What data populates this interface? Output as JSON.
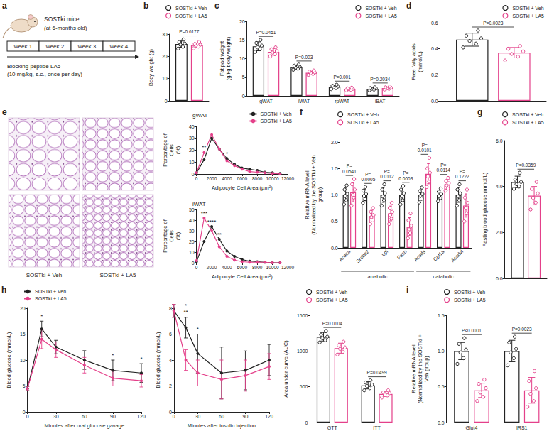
{
  "diagram": {
    "panel_label": "a",
    "subject": "SOSTki mice",
    "age": "(at 6-months old)",
    "weeks": [
      "week 1",
      "week 2",
      "week 3",
      "week 4"
    ],
    "treatment": "Blocking peptide LA5 (10 mg/kg, s.c., once per day)"
  },
  "images": {
    "panel_label": "e",
    "columns": [
      "SOSTki + Veh",
      "SOSTki + LA5"
    ]
  },
  "chart_data": [
    {
      "type": "bar",
      "panel_label": "b",
      "ylabel": "Body weight (g)",
      "categories": [
        null
      ],
      "ylim": [
        0,
        30
      ],
      "yticks": [
        0,
        10,
        20,
        30
      ],
      "grid": false,
      "legend": "top-left",
      "series": [
        {
          "name": "SOSTki + Veh",
          "color": "#222222",
          "values": [
            25.5
          ],
          "errors": [
            1.4
          ],
          "points": [
            [
              23.5,
              24.3,
              25.2,
              25.8,
              26.4,
              27.6
            ]
          ]
        },
        {
          "name": "SOSTki + LA5",
          "color": "#e4408a",
          "values": [
            25.0
          ],
          "errors": [
            1.0
          ],
          "points": [
            [
              23.6,
              24.4,
              24.9,
              25.2,
              25.6,
              26.5
            ]
          ]
        }
      ],
      "annotations": [
        "P=0.6177"
      ]
    },
    {
      "type": "bar",
      "panel_label": "c",
      "ylabel": "Fat pad weight (g/kg body weight)",
      "categories": [
        "gWAT",
        "iWAT",
        "rpWAT",
        "iBAT"
      ],
      "ylim": [
        0,
        20
      ],
      "yticks": [
        0,
        5,
        10,
        15,
        20
      ],
      "grid": false,
      "legend": "top-right",
      "series": [
        {
          "name": "SOSTki + Veh",
          "color": "#222222",
          "values": [
            13.3,
            7.7,
            2.4,
            1.9
          ],
          "errors": [
            1.2,
            0.5,
            0.4,
            0.3
          ],
          "points": [
            [
              11.8,
              12.5,
              13.0,
              13.5,
              14.2,
              15.0
            ],
            [
              7.0,
              7.3,
              7.6,
              7.8,
              8.1,
              8.4
            ],
            [
              1.8,
              2.1,
              2.3,
              2.5,
              2.7,
              3.0
            ],
            [
              1.5,
              1.7,
              1.9,
              2.0,
              2.1,
              2.3
            ]
          ]
        },
        {
          "name": "SOSTki + LA5",
          "color": "#e4408a",
          "values": [
            11.8,
            6.2,
            1.8,
            2.1
          ],
          "errors": [
            0.9,
            0.4,
            0.25,
            0.3
          ],
          "points": [
            [
              10.6,
              11.2,
              11.6,
              12.0,
              12.5,
              13.0
            ],
            [
              5.6,
              5.9,
              6.1,
              6.3,
              6.5,
              6.8
            ],
            [
              1.5,
              1.6,
              1.8,
              1.9,
              2.0,
              2.2
            ],
            [
              1.7,
              1.9,
              2.0,
              2.2,
              2.3,
              2.5
            ]
          ]
        }
      ],
      "annotations": [
        "P=0.0451",
        "P=0.003",
        "P=0.001",
        "P=0.2034"
      ]
    },
    {
      "type": "bar",
      "panel_label": "d",
      "ylabel": "Free fatty acids (mmol/L)",
      "categories": [
        null
      ],
      "ylim": [
        0,
        0.6
      ],
      "yticks": [
        {
          "value": 0,
          "label": "0.0"
        },
        0.2,
        0.4,
        0.6
      ],
      "grid": false,
      "legend": "top-right",
      "series": [
        {
          "name": "SOSTki + Veh",
          "color": "#222222",
          "values": [
            0.47
          ],
          "errors": [
            0.05
          ],
          "points": [
            [
              0.41,
              0.44,
              0.46,
              0.48,
              0.5,
              0.54
            ]
          ]
        },
        {
          "name": "SOSTki + LA5",
          "color": "#e4408a",
          "values": [
            0.37
          ],
          "errors": [
            0.04
          ],
          "points": [
            [
              0.31,
              0.34,
              0.36,
              0.38,
              0.4,
              0.42
            ]
          ]
        }
      ],
      "annotations": [
        "P=0.0023"
      ]
    },
    {
      "type": "line",
      "title": "gWAT",
      "xlabel": "Adipocyte Cell Area (µm²)",
      "ylabel": "Percentage of Cells (%)",
      "x": [
        0,
        1000,
        2000,
        3000,
        4000,
        5000,
        6000,
        7000,
        8000,
        9000,
        10000,
        11000
      ],
      "xlim": [
        0,
        12000
      ],
      "xticks": [
        0,
        2000,
        4000,
        6000,
        8000,
        10000,
        12000
      ],
      "ylim": [
        0,
        40
      ],
      "yticks": [
        0,
        10,
        20,
        30,
        40
      ],
      "grid": false,
      "legend": "top-right",
      "marker": "circle",
      "series": [
        {
          "name": "SOSTki + Veh",
          "color": "#222222",
          "values": [
            1,
            12,
            30,
            21,
            13,
            8,
            5,
            4,
            3,
            1.5,
            1,
            0.5
          ]
        },
        {
          "name": "SOSTki + LA5",
          "color": "#e4408a",
          "values": [
            1,
            18,
            33,
            21,
            11,
            7,
            4,
            2,
            1.5,
            1,
            0.5,
            0
          ]
        }
      ],
      "annotations": [
        {
          "x": 1000,
          "text": "**"
        },
        {
          "x": 4000,
          "text": "*"
        }
      ]
    },
    {
      "type": "line",
      "title": "iWAT",
      "xlabel": "Adipocyte Cell Area (µm²)",
      "ylabel": "Percentage of Cells (%)",
      "x": [
        0,
        1000,
        2000,
        3000,
        4000,
        5000,
        6000,
        7000,
        8000,
        9000,
        10000,
        11000
      ],
      "xlim": [
        0,
        12000
      ],
      "xticks": [
        0,
        2000,
        4000,
        6000,
        8000,
        10000,
        12000
      ],
      "ylim": [
        0,
        50
      ],
      "yticks": [
        0,
        10,
        20,
        30,
        40,
        50
      ],
      "grid": false,
      "marker": "circle",
      "series": [
        {
          "name": "SOSTki + Veh",
          "color": "#222222",
          "values": [
            1,
            20,
            34,
            22,
            11,
            6,
            3,
            1.5,
            1,
            0.5,
            0,
            0
          ]
        },
        {
          "name": "SOSTki + LA5",
          "color": "#e4408a",
          "values": [
            2,
            42,
            30,
            15,
            6,
            2.5,
            1,
            0.5,
            0.5,
            0.5,
            0,
            0
          ]
        }
      ],
      "annotations": [
        {
          "x": 1000,
          "text": "***"
        },
        {
          "x": 2000,
          "text": "****"
        },
        {
          "x": 3000,
          "text": "**"
        }
      ]
    },
    {
      "type": "bar",
      "panel_label": "f",
      "ylabel": "Relative mRNA level (Normalized by the SOSTki + Veh group)",
      "categories": [
        "Acaca",
        "Srebp2",
        "Lpl",
        "Fasn",
        "Acads",
        "Cpt1a",
        "Acadvl"
      ],
      "groups": [
        {
          "label": "anabolic",
          "from": "Acaca",
          "to": "Fasn"
        },
        {
          "label": "catabolic",
          "from": "Acads",
          "to": "Acadvl"
        }
      ],
      "ylim": [
        0,
        2
      ],
      "yticks": [
        {
          "value": 0,
          "label": "0.0"
        },
        0.5,
        {
          "value": 1,
          "label": "1.0"
        },
        1.5,
        {
          "value": 2,
          "label": "2.0"
        }
      ],
      "grid": false,
      "legend": "top-left",
      "series": [
        {
          "name": "SOSTki + Veh",
          "color": "#222222",
          "values": [
            1.0,
            1.0,
            1.0,
            1.0,
            1.0,
            1.0,
            1.0
          ],
          "errors": [
            0.13,
            0.11,
            0.14,
            0.12,
            0.1,
            0.09,
            0.14
          ],
          "points": [
            [
              0.82,
              0.9,
              0.98,
              1.02,
              1.1,
              1.18
            ],
            [
              0.85,
              0.92,
              0.98,
              1.02,
              1.08,
              1.15
            ],
            [
              0.8,
              0.9,
              0.97,
              1.03,
              1.1,
              1.2
            ],
            [
              0.82,
              0.9,
              0.98,
              1.03,
              1.1,
              1.17
            ],
            [
              0.86,
              0.93,
              0.98,
              1.02,
              1.07,
              1.14
            ],
            [
              0.88,
              0.94,
              0.98,
              1.02,
              1.06,
              1.12
            ],
            [
              0.8,
              0.9,
              0.97,
              1.03,
              1.1,
              1.2
            ]
          ]
        },
        {
          "name": "SOSTki + LA5",
          "color": "#e4408a",
          "values": [
            1.05,
            0.6,
            0.65,
            0.4,
            1.4,
            1.2,
            0.8
          ],
          "errors": [
            0.18,
            0.11,
            0.14,
            0.17,
            0.19,
            0.09,
            0.22
          ],
          "points": [
            [
              0.8,
              0.95,
              1.0,
              1.1,
              1.2,
              1.3
            ],
            [
              0.45,
              0.52,
              0.58,
              0.62,
              0.68,
              0.75
            ],
            [
              0.45,
              0.55,
              0.62,
              0.68,
              0.75,
              0.85
            ],
            [
              0.18,
              0.28,
              0.35,
              0.42,
              0.52,
              0.65
            ],
            [
              1.15,
              1.25,
              1.35,
              1.42,
              1.5,
              1.7
            ],
            [
              1.08,
              1.12,
              1.18,
              1.22,
              1.26,
              1.32
            ],
            [
              0.5,
              0.65,
              0.75,
              0.85,
              0.95,
              1.1
            ]
          ]
        }
      ],
      "annotations": [
        "P=0.0541",
        "P=0.0005",
        "P=0.0112",
        "P=0.0003",
        "P=0.0101",
        "P=0.0114",
        "P=0.1222"
      ]
    },
    {
      "type": "bar",
      "panel_label": "g",
      "ylabel": "Fasting blood glucose (mmol/L)",
      "categories": [
        null
      ],
      "ylim": [
        0,
        6
      ],
      "yticks": [
        {
          "value": 0,
          "label": "0.0"
        },
        {
          "value": 2,
          "label": "2.0"
        },
        {
          "value": 4,
          "label": "4.0"
        },
        {
          "value": 6,
          "label": "6.0"
        }
      ],
      "grid": false,
      "legend": "top-left",
      "series": [
        {
          "name": "SOSTki + Veh",
          "color": "#222222",
          "values": [
            4.2
          ],
          "errors": [
            0.25
          ],
          "points": [
            [
              3.9,
              4.0,
              4.1,
              4.2,
              4.3,
              4.6
            ]
          ]
        },
        {
          "name": "SOSTki + LA5",
          "color": "#e4408a",
          "values": [
            3.6
          ],
          "errors": [
            0.4
          ],
          "points": [
            [
              3.0,
              3.3,
              3.5,
              3.7,
              3.9,
              4.2
            ]
          ]
        }
      ],
      "annotations": [
        "P=0.0359"
      ]
    },
    {
      "type": "line",
      "panel_label": "h",
      "xlabel": "Minutes after oral glucose gavage",
      "ylabel": "Blood glucose (mmol/L)",
      "x": [
        0,
        15,
        30,
        60,
        90,
        120
      ],
      "xlim": [
        0,
        120
      ],
      "xticks": [
        0,
        30,
        60,
        90,
        120
      ],
      "ylim": [
        0,
        20
      ],
      "yticks": [
        0,
        5,
        10,
        15,
        20
      ],
      "grid": false,
      "legend": "top-left",
      "marker": "circle",
      "series": [
        {
          "name": "SOSTki + Veh",
          "color": "#222222",
          "values": [
            4.5,
            16,
            12.5,
            10,
            8,
            7.5
          ],
          "errors": [
            0.4,
            1.5,
            1.3,
            1.8,
            2.0,
            1.8
          ]
        },
        {
          "name": "SOSTki + LA5",
          "color": "#e4408a",
          "values": [
            4.5,
            14,
            12,
            9,
            6.5,
            6
          ],
          "errors": [
            0.4,
            1.8,
            1.5,
            1.5,
            1.5,
            1.2
          ]
        }
      ],
      "annotations": [
        {
          "x": 15,
          "text": "*"
        },
        {
          "x": 90,
          "text": "*"
        },
        {
          "x": 120,
          "text": "*"
        }
      ]
    },
    {
      "type": "line",
      "xlabel": "Minutes after insulin injection",
      "ylabel": "Blood glucose (mmol/L)",
      "x": [
        0,
        15,
        30,
        60,
        90,
        120
      ],
      "xlim": [
        0,
        120
      ],
      "xticks": [
        0,
        30,
        60,
        90,
        120
      ],
      "ylim": [
        0,
        8
      ],
      "yticks": [
        0,
        2,
        4,
        6,
        8
      ],
      "grid": false,
      "marker": "circle",
      "series": [
        {
          "name": "SOSTki + Veh",
          "color": "#222222",
          "values": [
            7.8,
            6.5,
            4.5,
            3,
            3.2,
            4
          ],
          "errors": [
            0.5,
            0.8,
            1.5,
            2.0,
            1.5,
            1.2
          ]
        },
        {
          "name": "SOSTki + LA5",
          "color": "#e4408a",
          "values": [
            7.8,
            4,
            3,
            2.5,
            2.8,
            3.5
          ],
          "errors": [
            0.5,
            0.8,
            1.0,
            1.5,
            1.2,
            1.0
          ]
        }
      ],
      "annotations": [
        {
          "x": 15,
          "text": "**"
        },
        {
          "x": 15,
          "text": "*"
        },
        {
          "x": 30,
          "text": "*"
        }
      ]
    },
    {
      "type": "bar",
      "ylabel": "Area under curve (AUC)",
      "categories": [
        "GTT",
        "ITT"
      ],
      "ylim": [
        0,
        1500
      ],
      "yticks": [
        0,
        500,
        1000,
        1500
      ],
      "grid": false,
      "legend": "top-left",
      "series": [
        {
          "name": "SOSTki + Veh",
          "color": "#222222",
          "values": [
            1200,
            520
          ],
          "errors": [
            60,
            50
          ],
          "points": [
            [
              1120,
              1150,
              1180,
              1200,
              1230,
              1280
            ],
            [
              450,
              480,
              510,
              530,
              560,
              590
            ]
          ]
        },
        {
          "name": "SOSTki + LA5",
          "color": "#e4408a",
          "values": [
            1040,
            400
          ],
          "errors": [
            70,
            35
          ],
          "points": [
            [
              950,
              990,
              1030,
              1050,
              1080,
              1130
            ],
            [
              350,
              380,
              390,
              410,
              420,
              450
            ]
          ]
        }
      ],
      "annotations": [
        "P=0.0104",
        "P=0.0499"
      ]
    },
    {
      "type": "bar",
      "panel_label": "i",
      "ylabel": "Relative mRNA level (Normalized by the SOSTki + Veh group)",
      "categories": [
        "Glut4",
        "IRS1"
      ],
      "ylim": [
        0,
        1.5
      ],
      "yticks": [
        {
          "value": 0,
          "label": "0.0"
        },
        0.5,
        {
          "value": 1,
          "label": "1.0"
        },
        1.5
      ],
      "grid": false,
      "legend": "top-left",
      "series": [
        {
          "name": "SOSTki + Veh",
          "color": "#222222",
          "values": [
            1.0,
            1.0
          ],
          "errors": [
            0.12,
            0.15
          ],
          "points": [
            [
              0.82,
              0.9,
              0.98,
              1.02,
              1.1,
              1.18
            ],
            [
              0.8,
              0.9,
              0.98,
              1.03,
              1.12,
              1.2
            ]
          ]
        },
        {
          "name": "SOSTki + LA5",
          "color": "#e4408a",
          "values": [
            0.45,
            0.45
          ],
          "errors": [
            0.1,
            0.18
          ],
          "points": [
            [
              0.3,
              0.36,
              0.42,
              0.48,
              0.54,
              0.6
            ],
            [
              0.22,
              0.3,
              0.4,
              0.48,
              0.58,
              0.72
            ]
          ]
        }
      ],
      "annotations": [
        "P<0.0001",
        "P=0.0023"
      ]
    }
  ]
}
